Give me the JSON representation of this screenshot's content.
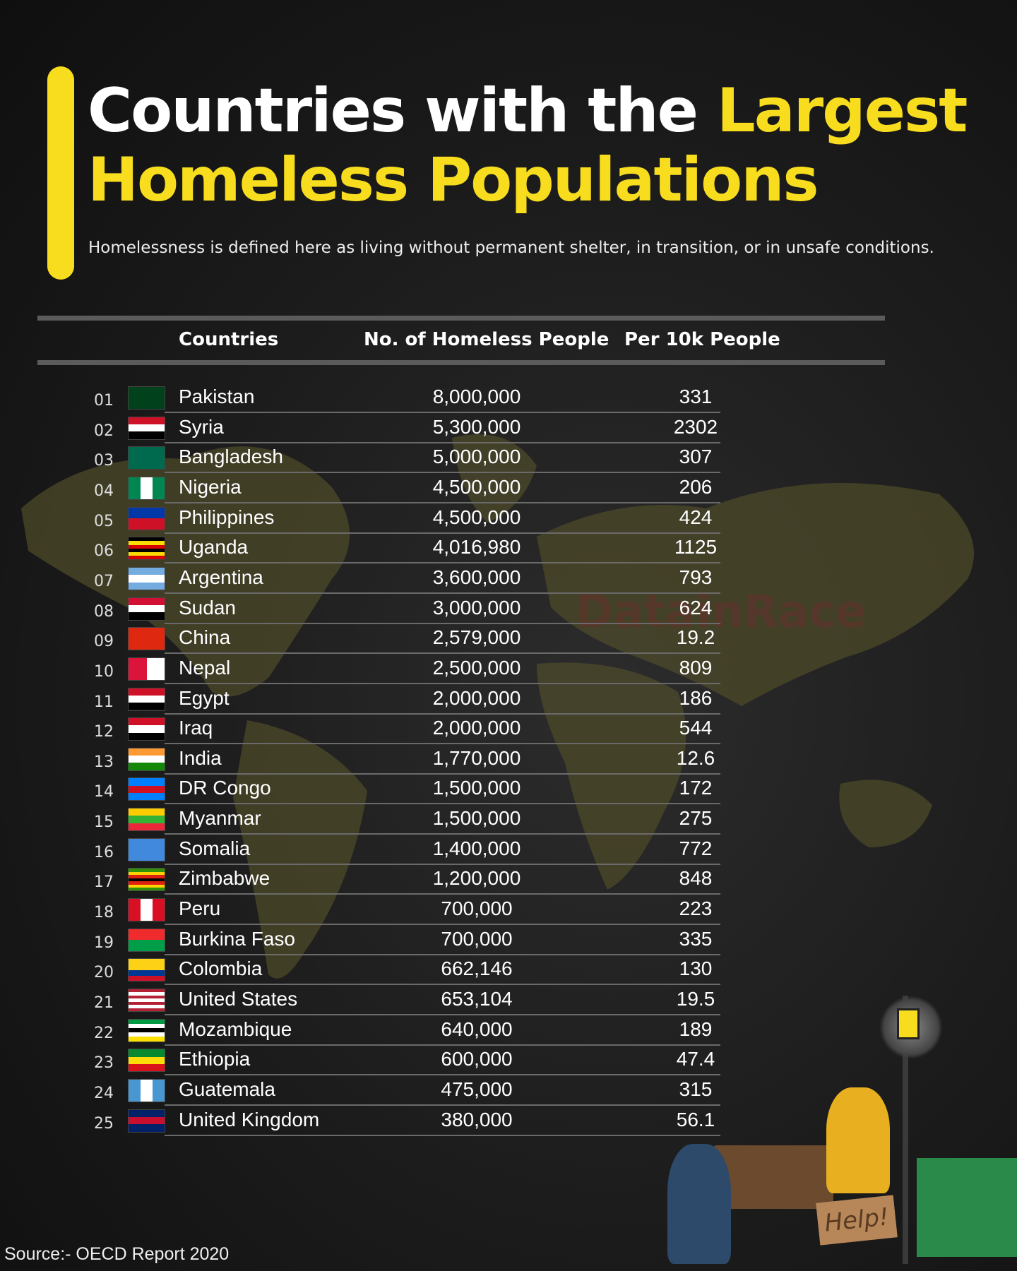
{
  "header": {
    "title_white": "Countries with the ",
    "title_yellow_1": "Largest",
    "title_yellow_2": "Homeless Populations",
    "subtitle": "Homelessness is defined here as living without permanent shelter, in transition, or in unsafe conditions."
  },
  "colors": {
    "accent": "#f7dd1e",
    "background": "#1b1b1b",
    "map": "#5a5530"
  },
  "watermark": "DatainRace",
  "illustration": {
    "sign_text": "Help!"
  },
  "source": "Source:-  OECD Report 2020",
  "chart_data": {
    "type": "table",
    "title": "Countries with the Largest Homeless Populations",
    "columns": [
      "Countries",
      "No. of Homeless People",
      "Per 10k People"
    ],
    "rows": [
      {
        "rank": "01",
        "country": "Pakistan",
        "homeless": "8,000,000",
        "per10k": "331",
        "flag": [
          "#01411c",
          "#01411c",
          "#01411c"
        ],
        "flag_dir": "v"
      },
      {
        "rank": "02",
        "country": "Syria",
        "homeless": "5,300,000",
        "per10k": "2302",
        "flag": [
          "#ce1126",
          "#ffffff",
          "#000000"
        ],
        "flag_dir": "h"
      },
      {
        "rank": "03",
        "country": "Bangladesh",
        "homeless": "5,000,000",
        "per10k": "307",
        "flag": [
          "#006a4e"
        ],
        "flag_dir": "h"
      },
      {
        "rank": "04",
        "country": "Nigeria",
        "homeless": "4,500,000",
        "per10k": "206",
        "flag": [
          "#008751",
          "#ffffff",
          "#008751"
        ],
        "flag_dir": "v"
      },
      {
        "rank": "05",
        "country": "Philippines",
        "homeless": "4,500,000",
        "per10k": "424",
        "flag": [
          "#0038a8",
          "#ce1126"
        ],
        "flag_dir": "h"
      },
      {
        "rank": "06",
        "country": "Uganda",
        "homeless": "4,016,980",
        "per10k": "1125",
        "flag": [
          "#000000",
          "#fcdc04",
          "#d90000",
          "#000000",
          "#fcdc04",
          "#d90000"
        ],
        "flag_dir": "h"
      },
      {
        "rank": "07",
        "country": "Argentina",
        "homeless": "3,600,000",
        "per10k": "793",
        "flag": [
          "#74acdf",
          "#ffffff",
          "#74acdf"
        ],
        "flag_dir": "h"
      },
      {
        "rank": "08",
        "country": "Sudan",
        "homeless": "3,000,000",
        "per10k": "624",
        "flag": [
          "#d21034",
          "#ffffff",
          "#000000"
        ],
        "flag_dir": "h"
      },
      {
        "rank": "09",
        "country": "China",
        "homeless": "2,579,000",
        "per10k": "19.2",
        "flag": [
          "#de2910"
        ],
        "flag_dir": "h"
      },
      {
        "rank": "10",
        "country": "Nepal",
        "homeless": "2,500,000",
        "per10k": "809",
        "flag": [
          "#dc143c",
          "#ffffff"
        ],
        "flag_dir": "v"
      },
      {
        "rank": "11",
        "country": "Egypt",
        "homeless": "2,000,000",
        "per10k": "186",
        "flag": [
          "#ce1126",
          "#ffffff",
          "#000000"
        ],
        "flag_dir": "h"
      },
      {
        "rank": "12",
        "country": "Iraq",
        "homeless": "2,000,000",
        "per10k": "544",
        "flag": [
          "#ce1126",
          "#ffffff",
          "#000000"
        ],
        "flag_dir": "h"
      },
      {
        "rank": "13",
        "country": "India",
        "homeless": "1,770,000",
        "per10k": "12.6",
        "flag": [
          "#ff9933",
          "#ffffff",
          "#138808"
        ],
        "flag_dir": "h"
      },
      {
        "rank": "14",
        "country": "DR Congo",
        "homeless": "1,500,000",
        "per10k": "172",
        "flag": [
          "#007fff",
          "#ce1021",
          "#007fff"
        ],
        "flag_dir": "h"
      },
      {
        "rank": "15",
        "country": "Myanmar",
        "homeless": "1,500,000",
        "per10k": "275",
        "flag": [
          "#fecb00",
          "#34b233",
          "#ea2839"
        ],
        "flag_dir": "h"
      },
      {
        "rank": "16",
        "country": "Somalia",
        "homeless": "1,400,000",
        "per10k": "772",
        "flag": [
          "#4189dd"
        ],
        "flag_dir": "h"
      },
      {
        "rank": "17",
        "country": "Zimbabwe",
        "homeless": "1,200,000",
        "per10k": "848",
        "flag": [
          "#319208",
          "#ffd200",
          "#de2010",
          "#000000",
          "#de2010",
          "#ffd200",
          "#319208"
        ],
        "flag_dir": "h"
      },
      {
        "rank": "18",
        "country": "Peru",
        "homeless": "700,000",
        "per10k": "223",
        "flag": [
          "#d91023",
          "#ffffff",
          "#d91023"
        ],
        "flag_dir": "v"
      },
      {
        "rank": "19",
        "country": "Burkina Faso",
        "homeless": "700,000",
        "per10k": "335",
        "flag": [
          "#ef2b2d",
          "#009e49"
        ],
        "flag_dir": "h"
      },
      {
        "rank": "20",
        "country": "Colombia",
        "homeless": "662,146",
        "per10k": "130",
        "flag": [
          "#fcd116",
          "#fcd116",
          "#003893",
          "#ce1126"
        ],
        "flag_dir": "h"
      },
      {
        "rank": "21",
        "country": "United States",
        "homeless": "653,104",
        "per10k": "19.5",
        "flag": [
          "#b22234",
          "#ffffff",
          "#b22234",
          "#ffffff",
          "#b22234",
          "#ffffff",
          "#b22234"
        ],
        "flag_dir": "h"
      },
      {
        "rank": "22",
        "country": "Mozambique",
        "homeless": "640,000",
        "per10k": "189",
        "flag": [
          "#009a44",
          "#ffffff",
          "#000000",
          "#ffffff",
          "#fce100"
        ],
        "flag_dir": "h"
      },
      {
        "rank": "23",
        "country": "Ethiopia",
        "homeless": "600,000",
        "per10k": "47.4",
        "flag": [
          "#078930",
          "#fcdd09",
          "#da121a"
        ],
        "flag_dir": "h"
      },
      {
        "rank": "24",
        "country": "Guatemala",
        "homeless": "475,000",
        "per10k": "315",
        "flag": [
          "#4997d0",
          "#ffffff",
          "#4997d0"
        ],
        "flag_dir": "v"
      },
      {
        "rank": "25",
        "country": "United Kingdom",
        "homeless": "380,000",
        "per10k": "56.1",
        "flag": [
          "#012169",
          "#c8102e",
          "#012169"
        ],
        "flag_dir": "h"
      }
    ]
  }
}
